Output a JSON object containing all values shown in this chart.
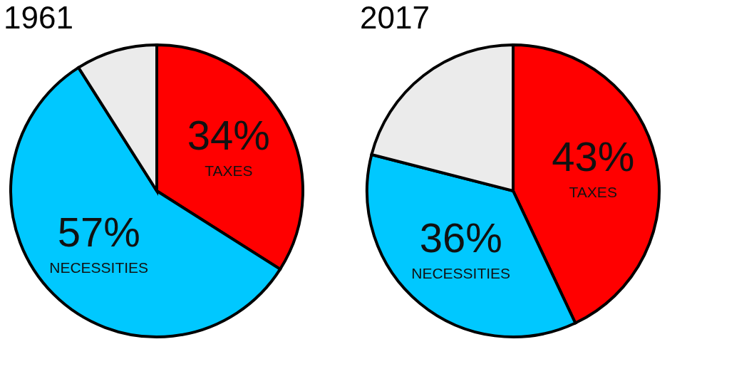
{
  "chart_data": [
    {
      "type": "pie",
      "title": "1961",
      "categories": [
        "TAXES",
        "NECESSITIES",
        null
      ],
      "values": [
        34,
        57,
        9
      ],
      "colors": [
        "#ff0000",
        "#00c8ff",
        "#ebebeb"
      ],
      "value_labels": [
        "34%",
        "57%",
        null
      ]
    },
    {
      "type": "pie",
      "title": "2017",
      "categories": [
        "TAXES",
        "NECESSITIES",
        null
      ],
      "values": [
        43,
        36,
        21
      ],
      "colors": [
        "#ff0000",
        "#00c8ff",
        "#ebebeb"
      ],
      "value_labels": [
        "43%",
        "36%",
        null
      ]
    }
  ]
}
